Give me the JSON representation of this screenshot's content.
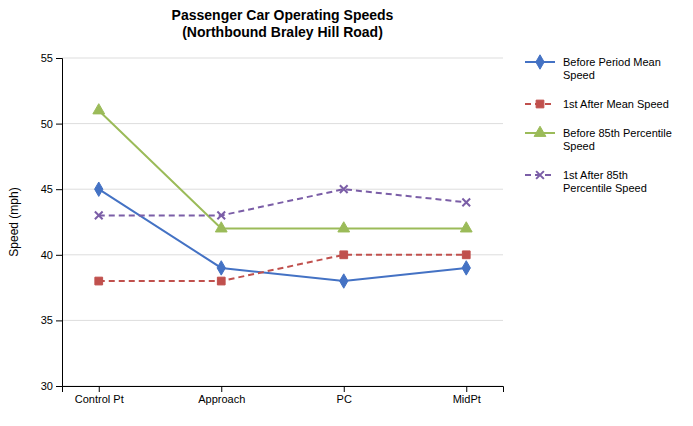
{
  "chart_data": {
    "type": "line",
    "title": "Passenger Car Operating Speeds\n(Northbound  Braley Hill Road)",
    "ylabel": "Speed (mph)",
    "categories": [
      "Control Pt",
      "Approach",
      "PC",
      "MidPt"
    ],
    "ylim": [
      30,
      55
    ],
    "yticks": [
      30,
      35,
      40,
      45,
      50,
      55
    ],
    "grid": true,
    "legend": "right",
    "series": [
      {
        "name": "Before Period Mean\nSpeed",
        "color": "#4472C4",
        "values": [
          45,
          39,
          38,
          39
        ],
        "marker": "diamond",
        "line_style": "solid"
      },
      {
        "name": "1st After Mean Speed",
        "color": "#C0504D",
        "values": [
          38,
          38,
          40,
          40
        ],
        "marker": "square",
        "line_style": "dashed"
      },
      {
        "name": "Before 85th Percentile\nSpeed",
        "color": "#9BBB59",
        "values": [
          51,
          42,
          42,
          42
        ],
        "marker": "triangle",
        "line_style": "solid"
      },
      {
        "name": "1st After 85th\nPercentile Speed",
        "color": "#7B5EA7",
        "values": [
          43,
          43,
          45,
          44
        ],
        "marker": "x",
        "line_style": "dashed"
      }
    ]
  }
}
